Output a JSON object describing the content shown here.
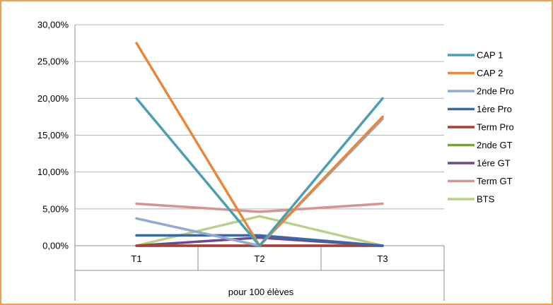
{
  "chart_data": {
    "type": "line",
    "categories": [
      "T1",
      "T2",
      "T3"
    ],
    "group_label": "pour 100 élèves",
    "ylim": [
      0,
      30
    ],
    "y_ticks": [
      "0,00%",
      "5,00%",
      "10,00%",
      "15,00%",
      "20,00%",
      "25,00%",
      "30,00%"
    ],
    "y_tick_values": [
      0,
      5,
      10,
      15,
      20,
      25,
      30
    ],
    "grid": true,
    "legend_position": "right",
    "series": [
      {
        "name": "CAP 1",
        "color": "#4aa0ae",
        "values": [
          20,
          0,
          20
        ]
      },
      {
        "name": "CAP 2",
        "color": "#e8873a",
        "values": [
          27.5,
          0,
          17.5
        ]
      },
      {
        "name": "2nde Pro",
        "color": "#8fabd0",
        "values": [
          3.7,
          0,
          17.2
        ]
      },
      {
        "name": "1ère Pro",
        "color": "#3b66a8",
        "values": [
          1.4,
          1.4,
          0
        ]
      },
      {
        "name": "Term Pro",
        "color": "#b03a37",
        "values": [
          0,
          0,
          0
        ]
      },
      {
        "name": "2nde GT",
        "color": "#78a33a",
        "values": [
          0,
          0,
          0
        ]
      },
      {
        "name": "1ére GT",
        "color": "#6a4a90",
        "values": [
          0,
          1.1,
          0
        ]
      },
      {
        "name": "Term GT",
        "color": "#d49592",
        "values": [
          5.7,
          4.6,
          5.7
        ]
      },
      {
        "name": "BTS",
        "color": "#b9d08c",
        "values": [
          0,
          4,
          0
        ]
      }
    ]
  }
}
